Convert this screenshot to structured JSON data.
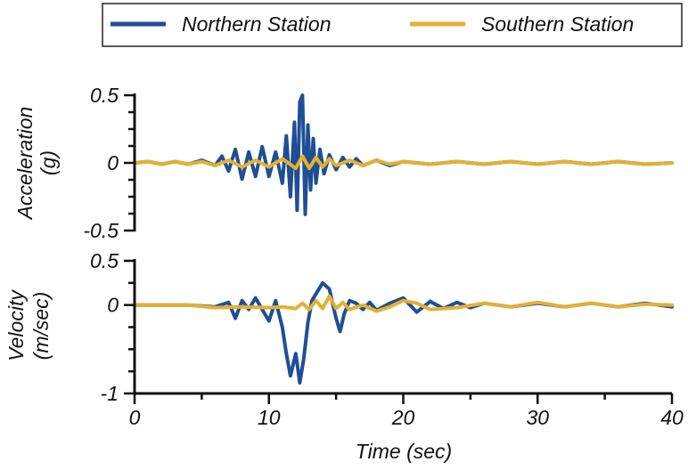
{
  "chart_data": {
    "type": "line",
    "legend": {
      "placement": "top",
      "entries": [
        {
          "name": "Northern Station",
          "color": "#1f4e96"
        },
        {
          "name": "Southern Station",
          "color": "#e3b132"
        }
      ]
    },
    "x": {
      "label": "Time (sec)",
      "range": [
        0,
        40
      ],
      "ticks": [
        0,
        10,
        20,
        30,
        40
      ]
    },
    "panels": [
      {
        "id": "acceleration",
        "ylabel_line1": "Acceleration",
        "ylabel_line2": "(g)",
        "ylim": [
          -0.5,
          0.5
        ],
        "major_ticks": [
          -0.5,
          0,
          0.5
        ],
        "tick_labels": [
          "-0.5",
          "0",
          "0.5"
        ],
        "minor_ticks": [
          -0.375,
          -0.25,
          -0.125,
          0.125,
          0.25,
          0.375
        ],
        "series": [
          {
            "name": "Northern Station",
            "color": "#1f4e96",
            "x": [
              0,
              1,
              2,
              3,
              4,
              5,
              6,
              6.5,
              7,
              7.5,
              8,
              8.5,
              9,
              9.5,
              10,
              10.5,
              11,
              11.3,
              11.6,
              11.9,
              12.1,
              12.3,
              12.5,
              12.7,
              12.9,
              13.1,
              13.3,
              13.5,
              13.8,
              14.1,
              14.5,
              15,
              15.5,
              16,
              16.5,
              17,
              18,
              19,
              20,
              22,
              24,
              26,
              28,
              30,
              32,
              34,
              36,
              38,
              40
            ],
            "y": [
              0,
              0.01,
              -0.01,
              0.01,
              -0.01,
              0.02,
              -0.02,
              0.05,
              -0.06,
              0.1,
              -0.12,
              0.08,
              -0.1,
              0.12,
              -0.1,
              0.08,
              -0.15,
              0.2,
              -0.25,
              0.3,
              -0.35,
              0.45,
              0.5,
              -0.38,
              0.28,
              -0.2,
              0.18,
              -0.15,
              0.1,
              -0.08,
              0.06,
              -0.05,
              0.04,
              -0.03,
              0.03,
              -0.02,
              0.02,
              -0.02,
              0.01,
              -0.01,
              0.01,
              -0.01,
              0.01,
              -0.01,
              0.01,
              -0.01,
              0.01,
              -0.01,
              0
            ]
          },
          {
            "name": "Southern Station",
            "color": "#e3b132",
            "x": [
              0,
              1,
              2,
              3,
              4,
              5,
              6,
              7,
              8,
              9,
              10,
              11,
              12,
              12.5,
              13,
              13.5,
              14,
              14.5,
              15,
              16,
              17,
              18,
              19,
              20,
              22,
              24,
              26,
              28,
              30,
              32,
              34,
              36,
              38,
              40
            ],
            "y": [
              0,
              0.01,
              -0.01,
              0.01,
              -0.01,
              0.01,
              -0.02,
              0.02,
              -0.03,
              0.02,
              -0.03,
              0.03,
              -0.04,
              0.05,
              -0.04,
              0.04,
              -0.03,
              0.03,
              -0.02,
              0.02,
              -0.02,
              0.02,
              -0.01,
              0.01,
              -0.01,
              0.01,
              -0.01,
              0.01,
              -0.01,
              0.01,
              -0.01,
              0.01,
              -0.01,
              0
            ]
          }
        ]
      },
      {
        "id": "velocity",
        "ylabel_line1": "Velocity",
        "ylabel_line2": "(m/sec)",
        "ylim": [
          -1,
          0.5
        ],
        "major_ticks": [
          -1,
          0,
          0.5
        ],
        "tick_labels": [
          "-1",
          "0",
          "0.5"
        ],
        "minor_ticks": [
          -0.75,
          -0.5,
          -0.25,
          0.25
        ],
        "series": [
          {
            "name": "Northern Station",
            "color": "#1f4e96",
            "x": [
              0,
              2,
              4,
              6,
              7,
              7.5,
              8,
              8.5,
              9,
              9.5,
              10,
              10.5,
              11,
              11.3,
              11.6,
              12,
              12.3,
              12.6,
              12.9,
              13.2,
              13.6,
              14,
              14.5,
              15,
              15.3,
              15.6,
              16,
              16.5,
              17,
              17.5,
              18,
              19,
              20,
              21,
              22,
              23,
              24,
              25,
              26,
              28,
              30,
              32,
              34,
              36,
              38,
              40
            ],
            "y": [
              0,
              0,
              0,
              -0.02,
              0.03,
              -0.15,
              0.05,
              -0.05,
              0.08,
              -0.05,
              -0.18,
              0.05,
              -0.25,
              -0.55,
              -0.8,
              -0.55,
              -0.88,
              -0.6,
              -0.2,
              0.05,
              0.15,
              0.25,
              0.18,
              -0.15,
              -0.3,
              -0.1,
              0.05,
              0.02,
              -0.05,
              0.03,
              -0.06,
              0.02,
              0.08,
              -0.08,
              0.04,
              -0.04,
              0.03,
              -0.03,
              0.02,
              -0.02,
              0.02,
              -0.02,
              0.02,
              -0.02,
              0.02,
              -0.02
            ]
          },
          {
            "name": "Southern Station",
            "color": "#e3b132",
            "x": [
              0,
              2,
              4,
              6,
              8,
              10,
              11,
              12,
              12.5,
              13,
              13.5,
              14,
              14.5,
              15,
              15.5,
              16,
              17,
              18,
              19,
              20,
              21,
              22,
              24,
              26,
              28,
              30,
              32,
              34,
              36,
              38,
              40
            ],
            "y": [
              0,
              0,
              0,
              -0.03,
              -0.02,
              -0.03,
              -0.02,
              -0.04,
              0.02,
              -0.05,
              0.05,
              -0.04,
              0.1,
              -0.04,
              0.03,
              -0.05,
              0.0,
              -0.07,
              -0.02,
              0.05,
              0.02,
              -0.05,
              -0.03,
              0.02,
              -0.02,
              0.03,
              -0.02,
              0.02,
              -0.02,
              0.01,
              0
            ]
          }
        ]
      }
    ]
  }
}
